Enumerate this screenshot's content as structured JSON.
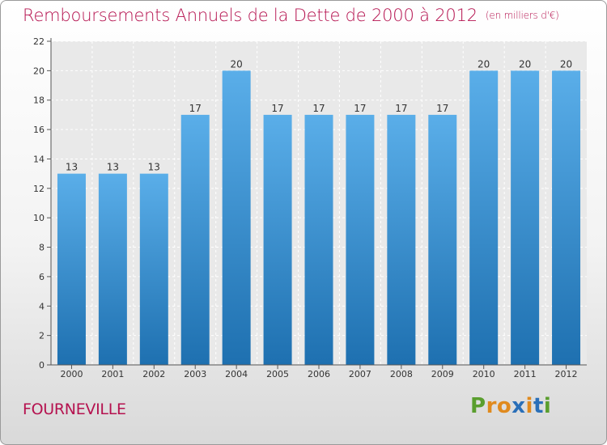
{
  "title": "Remboursements Annuels de la Dette de 2000 à 2012",
  "unit_note": "(en milliers d'€)",
  "city": "FOURNEVILLE",
  "logo": {
    "text": "Proxiti",
    "colors": [
      "#5a9e2e",
      "#e08a1e",
      "#e08a1e",
      "#2a6fb8",
      "#e08a1e",
      "#2a6fb8",
      "#5a9e2e"
    ]
  },
  "colors": {
    "title": "#b5124f",
    "bar_top": "#5aaee9",
    "bar_bottom": "#1e70b0",
    "axis": "#555555"
  },
  "chart_data": {
    "type": "bar",
    "categories": [
      "2000",
      "2001",
      "2002",
      "2003",
      "2004",
      "2005",
      "2006",
      "2007",
      "2008",
      "2009",
      "2010",
      "2011",
      "2012"
    ],
    "values": [
      13,
      13,
      13,
      17,
      20,
      17,
      17,
      17,
      17,
      17,
      20,
      20,
      20
    ],
    "data_labels": [
      "13",
      "13",
      "13",
      "17",
      "20",
      "17",
      "17",
      "17",
      "17",
      "17",
      "20",
      "20",
      "20"
    ],
    "yticks": [
      "0",
      "2",
      "4",
      "6",
      "8",
      "10",
      "12",
      "14",
      "16",
      "18",
      "20",
      "22"
    ],
    "ylim": [
      0,
      22
    ],
    "grid": true,
    "xlabel": "",
    "ylabel": ""
  }
}
